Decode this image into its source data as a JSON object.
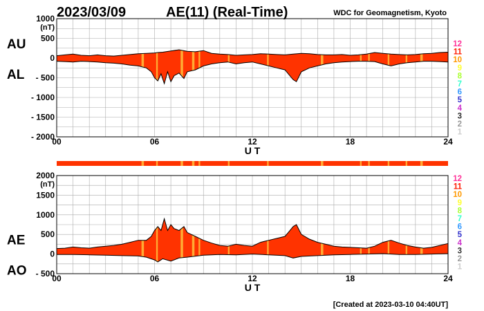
{
  "header": {
    "date": "2023/03/09",
    "title": "AE(11) (Real-Time)",
    "source": "WDC for Geomagnetism, Kyoto"
  },
  "footer": {
    "created": "[Created at 2023-03-10 04:40UT]"
  },
  "legend": {
    "entries": [
      {
        "label": "12",
        "color": "#ff3399"
      },
      {
        "label": "11",
        "color": "#ff1a00"
      },
      {
        "label": "10",
        "color": "#ff9900"
      },
      {
        "label": "9",
        "color": "#ffff33"
      },
      {
        "label": "8",
        "color": "#aaff33"
      },
      {
        "label": "7",
        "color": "#33ffcc"
      },
      {
        "label": "6",
        "color": "#3399ff"
      },
      {
        "label": "5",
        "color": "#3333cc"
      },
      {
        "label": "4",
        "color": "#cc33cc"
      },
      {
        "label": "3",
        "color": "#333333"
      },
      {
        "label": "2",
        "color": "#999999"
      },
      {
        "label": "1",
        "color": "#cccccc"
      }
    ]
  },
  "colors": {
    "fill": "#ff3300",
    "band": "#ffaa33",
    "line": "#000000",
    "grid": "#aaaaaa"
  },
  "chart_data": [
    {
      "type": "area",
      "left_labels": [
        "AU",
        "AL"
      ],
      "xlabel": "U T",
      "ylabel_unit": "(nT)",
      "xlim": [
        0,
        24
      ],
      "ylim": [
        -2000,
        1000
      ],
      "y_ticks": [
        {
          "v": 1000,
          "label": "1000"
        },
        {
          "v": 500,
          "label": "500"
        },
        {
          "v": 0,
          "label": "0"
        },
        {
          "v": -500,
          "label": "- 500"
        },
        {
          "v": -1000,
          "label": "- 1000"
        },
        {
          "v": -1500,
          "label": "- 1500"
        },
        {
          "v": -2000,
          "label": "- 2000"
        }
      ],
      "x_ticks": [
        {
          "v": 0,
          "label": "00"
        },
        {
          "v": 6,
          "label": "06"
        },
        {
          "v": 12,
          "label": "12"
        },
        {
          "v": 18,
          "label": "18"
        },
        {
          "v": 24,
          "label": "24"
        }
      ],
      "upper": {
        "name": "AU",
        "x": [
          0,
          0.5,
          1,
          1.5,
          2,
          2.5,
          3,
          3.5,
          4,
          4.5,
          5,
          5.5,
          6,
          6.2,
          6.5,
          7,
          7.5,
          8,
          8.5,
          9,
          9.5,
          10,
          10.5,
          11,
          11.5,
          12,
          12.5,
          13,
          13.5,
          14,
          14.5,
          15,
          15.5,
          16,
          16.5,
          17,
          17.5,
          18,
          18.5,
          19,
          19.5,
          20,
          20.5,
          21,
          21.5,
          22,
          22.5,
          23,
          23.5,
          24
        ],
        "y": [
          60,
          80,
          100,
          70,
          60,
          80,
          60,
          50,
          70,
          90,
          110,
          120,
          130,
          140,
          150,
          180,
          210,
          170,
          160,
          190,
          120,
          100,
          90,
          70,
          80,
          90,
          110,
          100,
          90,
          80,
          100,
          120,
          110,
          90,
          80,
          80,
          90,
          70,
          80,
          100,
          140,
          120,
          100,
          90,
          80,
          90,
          110,
          120,
          140,
          150
        ]
      },
      "lower": {
        "name": "AL",
        "x": [
          0,
          0.5,
          1,
          1.5,
          2,
          2.5,
          3,
          3.5,
          4,
          4.5,
          5,
          5.5,
          5.8,
          6,
          6.2,
          6.4,
          6.6,
          6.8,
          7,
          7.2,
          7.5,
          7.8,
          8,
          8.5,
          9,
          9.5,
          10,
          10.5,
          11,
          11.5,
          12,
          12.5,
          13,
          13.5,
          14,
          14.2,
          14.5,
          14.7,
          15,
          15.5,
          16,
          16.5,
          17,
          17.5,
          18,
          18.5,
          19,
          19.5,
          20,
          20.5,
          21,
          21.5,
          22,
          22.5,
          23,
          23.5,
          24
        ],
        "y": [
          -80,
          -90,
          -100,
          -80,
          -90,
          -100,
          -120,
          -130,
          -150,
          -180,
          -200,
          -250,
          -350,
          -500,
          -580,
          -400,
          -650,
          -350,
          -600,
          -450,
          -380,
          -520,
          -350,
          -300,
          -200,
          -150,
          -120,
          -100,
          -150,
          -120,
          -100,
          -150,
          -200,
          -250,
          -300,
          -400,
          -550,
          -600,
          -350,
          -250,
          -200,
          -150,
          -120,
          -100,
          -90,
          -80,
          -80,
          -90,
          -150,
          -200,
          -150,
          -120,
          -100,
          -80,
          -80,
          -90,
          -100
        ]
      }
    },
    {
      "type": "area",
      "left_labels": [
        "AE",
        "AO"
      ],
      "xlabel": "U T",
      "ylabel_unit": "(nT)",
      "xlim": [
        0,
        24
      ],
      "ylim": [
        -500,
        2000
      ],
      "y_ticks": [
        {
          "v": 2000,
          "label": "2000"
        },
        {
          "v": 1500,
          "label": "1500"
        },
        {
          "v": 1000,
          "label": "1000"
        },
        {
          "v": 500,
          "label": "500"
        },
        {
          "v": 0,
          "label": "0"
        },
        {
          "v": -500,
          "label": "- 500"
        }
      ],
      "x_ticks": [
        {
          "v": 0,
          "label": "00"
        },
        {
          "v": 6,
          "label": "06"
        },
        {
          "v": 12,
          "label": "12"
        },
        {
          "v": 18,
          "label": "18"
        },
        {
          "v": 24,
          "label": "24"
        }
      ],
      "upper": {
        "name": "AE",
        "x": [
          0,
          0.5,
          1,
          1.5,
          2,
          2.5,
          3,
          3.5,
          4,
          4.5,
          5,
          5.5,
          5.8,
          6,
          6.2,
          6.4,
          6.6,
          6.8,
          7,
          7.2,
          7.5,
          7.8,
          8,
          8.5,
          9,
          9.5,
          10,
          10.5,
          11,
          11.5,
          12,
          12.5,
          13,
          13.5,
          14,
          14.2,
          14.5,
          14.7,
          15,
          15.5,
          16,
          16.5,
          17,
          17.5,
          18,
          18.5,
          19,
          19.5,
          20,
          20.5,
          21,
          21.5,
          22,
          22.5,
          23,
          23.5,
          24
        ],
        "y": [
          140,
          150,
          180,
          160,
          150,
          180,
          200,
          220,
          250,
          300,
          350,
          350,
          450,
          600,
          700,
          600,
          900,
          600,
          750,
          650,
          600,
          700,
          550,
          450,
          350,
          280,
          220,
          200,
          250,
          220,
          200,
          300,
          350,
          400,
          450,
          550,
          700,
          750,
          500,
          380,
          300,
          250,
          200,
          180,
          170,
          160,
          150,
          200,
          300,
          350,
          280,
          220,
          180,
          150,
          170,
          220,
          270
        ]
      },
      "lower": {
        "name": "AO",
        "x": [
          0,
          1,
          2,
          3,
          4,
          5,
          5.5,
          6,
          6.2,
          6.5,
          7,
          7.5,
          8,
          9,
          10,
          11,
          12,
          13,
          14,
          14.5,
          15,
          16,
          17,
          18,
          19,
          20,
          21,
          22,
          23,
          24
        ],
        "y": [
          -10,
          -10,
          -20,
          -30,
          -40,
          -50,
          -80,
          -150,
          -200,
          -120,
          -180,
          -100,
          -80,
          -30,
          -10,
          -20,
          0,
          -20,
          -40,
          -100,
          -60,
          -40,
          -20,
          -10,
          0,
          10,
          -10,
          -10,
          0,
          10
        ]
      }
    }
  ],
  "activity_bar": {
    "bands": [
      [
        5.2,
        5.35
      ],
      [
        6.1,
        6.2
      ],
      [
        7.6,
        7.75
      ],
      [
        8.3,
        8.45
      ],
      [
        8.7,
        8.8
      ],
      [
        10.5,
        10.6
      ],
      [
        12.9,
        13.0
      ],
      [
        16.2,
        16.35
      ],
      [
        18.6,
        18.7
      ],
      [
        19.1,
        19.2
      ],
      [
        20.3,
        20.4
      ],
      [
        21.4,
        21.5
      ],
      [
        22.3,
        22.45
      ]
    ]
  }
}
